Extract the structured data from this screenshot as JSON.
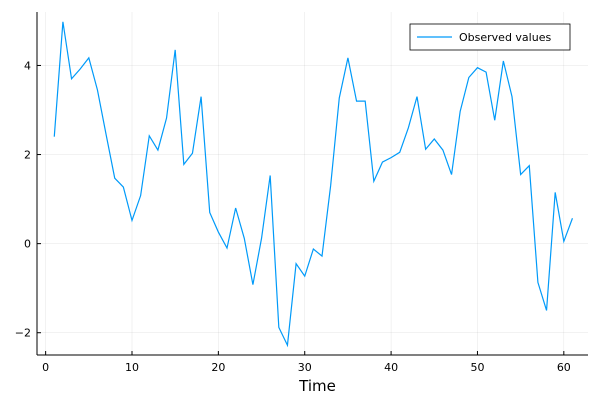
{
  "chart_data": {
    "type": "line",
    "title": "",
    "xlabel": "Time",
    "ylabel": "",
    "xlim": [
      -1,
      62.8
    ],
    "ylim": [
      -2.5,
      5.2
    ],
    "x_ticks": [
      0,
      10,
      20,
      30,
      40,
      50,
      60
    ],
    "x_tick_labels": [
      "0",
      "10",
      "20",
      "30",
      "40",
      "50",
      "60"
    ],
    "y_ticks": [
      -2,
      0,
      2,
      4
    ],
    "y_tick_labels": [
      "−2",
      "0",
      "2",
      "4"
    ],
    "grid": true,
    "legend_position": "top-right",
    "series": [
      {
        "name": "Observed values",
        "color": "#009AF9",
        "x": [
          1,
          2,
          3,
          4,
          5,
          6,
          7,
          8,
          9,
          10,
          11,
          12,
          13,
          14,
          15,
          16,
          17,
          18,
          19,
          20,
          21,
          22,
          23,
          24,
          25,
          26,
          27,
          28,
          29,
          30,
          31,
          32,
          33,
          34,
          35,
          36,
          37,
          38,
          39,
          40,
          41,
          42,
          43,
          44,
          45,
          46,
          47,
          48,
          49,
          50,
          51,
          52,
          53,
          54,
          55,
          56,
          57,
          58,
          59,
          60,
          61
        ],
        "values": [
          2.4,
          4.98,
          3.7,
          3.92,
          4.17,
          3.45,
          2.45,
          1.47,
          1.27,
          0.52,
          1.08,
          2.42,
          2.1,
          2.82,
          4.35,
          1.78,
          2.03,
          3.3,
          0.7,
          0.26,
          -0.1,
          0.8,
          0.12,
          -0.92,
          0.12,
          1.53,
          -1.88,
          -2.28,
          -0.45,
          -0.73,
          -0.12,
          -0.28,
          1.3,
          3.27,
          4.17,
          3.2,
          3.2,
          1.4,
          1.83,
          1.93,
          2.05,
          2.6,
          3.3,
          2.12,
          2.35,
          2.1,
          1.55,
          2.97,
          3.73,
          3.95,
          3.85,
          2.77,
          4.1,
          3.3,
          1.55,
          1.75,
          -0.87,
          -1.5,
          1.15,
          0.05,
          0.57
        ]
      }
    ]
  }
}
